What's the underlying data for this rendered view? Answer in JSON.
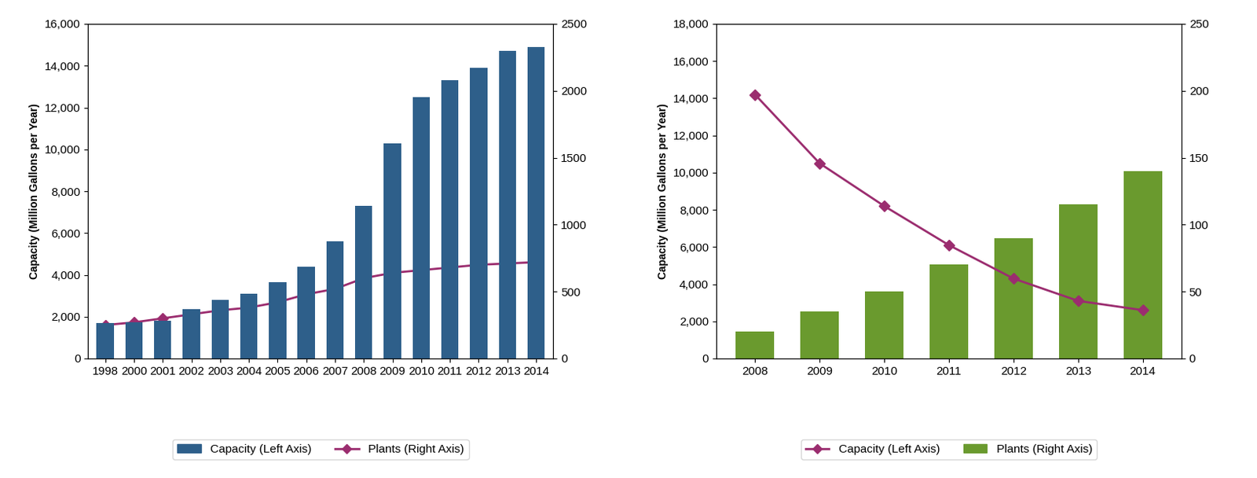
{
  "chart_data": [
    {
      "type": "bar",
      "categories": [
        "1998",
        "2000",
        "2001",
        "2002",
        "2003",
        "2004",
        "2005",
        "2006",
        "2007",
        "2008",
        "2009",
        "2010",
        "2011",
        "2012",
        "2013",
        "2014"
      ],
      "y_label": "Capacity (Million Gallons per Year)",
      "ylim": [
        0,
        16000
      ],
      "yticks": [
        0,
        {
          "value": 2000,
          "label": "2,000"
        },
        {
          "value": 4000,
          "label": "4,000"
        },
        {
          "value": 6000,
          "label": "6,000"
        },
        {
          "value": 8000,
          "label": "8,000"
        },
        {
          "value": 10000,
          "label": "10,000"
        },
        {
          "value": 12000,
          "label": "12,000"
        },
        {
          "value": 14000,
          "label": "14,000"
        },
        {
          "value": 16000,
          "label": "16,000"
        }
      ],
      "y2lim": [
        0,
        2500
      ],
      "y2ticks": [
        0,
        500,
        1000,
        1500,
        2000,
        2500
      ],
      "legend": "lower center",
      "series": [
        {
          "name": "Capacity (Left Axis)",
          "type": "bar",
          "color": "#2e5f8a",
          "values": [
            1700,
            1750,
            1800,
            2350,
            2800,
            3100,
            3650,
            4400,
            5600,
            7300,
            10300,
            12500,
            13300,
            13900,
            14700,
            14900
          ]
        },
        {
          "name": "Plants (Right Axis)",
          "type": "line",
          "axis": "y2",
          "color": "#9b2d6f",
          "marker": "D",
          "values": [
            250,
            270,
            300,
            330,
            360,
            380,
            420,
            480,
            520,
            600,
            640,
            660,
            680,
            700,
            710,
            720
          ]
        }
      ]
    },
    {
      "type": "line",
      "categories": [
        "2008",
        "2009",
        "2010",
        "2011",
        "2012",
        "2013",
        "2014"
      ],
      "y_label": "Capacity (Million Gallons per Year)",
      "ylim": [
        0,
        18000
      ],
      "yticks": [
        0,
        {
          "value": 2000,
          "label": "2,000"
        },
        {
          "value": 4000,
          "label": "4,000"
        },
        {
          "value": 6000,
          "label": "6,000"
        },
        {
          "value": 8000,
          "label": "8,000"
        },
        {
          "value": 10000,
          "label": "10,000"
        },
        {
          "value": 12000,
          "label": "12,000"
        },
        {
          "value": 14000,
          "label": "14,000"
        },
        {
          "value": 16000,
          "label": "16,000"
        },
        {
          "value": 18000,
          "label": "18,000"
        }
      ],
      "y2lim": [
        0,
        250
      ],
      "y2ticks": [
        0,
        50,
        100,
        150,
        200,
        250
      ],
      "legend": "lower center",
      "series": [
        {
          "name": "Capacity (Left Axis)",
          "type": "line",
          "color": "#9b2d6f",
          "marker": "D",
          "values": [
            14200,
            10500,
            8200,
            6100,
            4300,
            3100,
            2600
          ]
        },
        {
          "name": "Plants (Right Axis)",
          "type": "bar",
          "axis": "y2",
          "color": "#6a9a2e",
          "values": [
            20,
            35,
            50,
            70,
            90,
            115,
            140
          ]
        }
      ]
    }
  ]
}
